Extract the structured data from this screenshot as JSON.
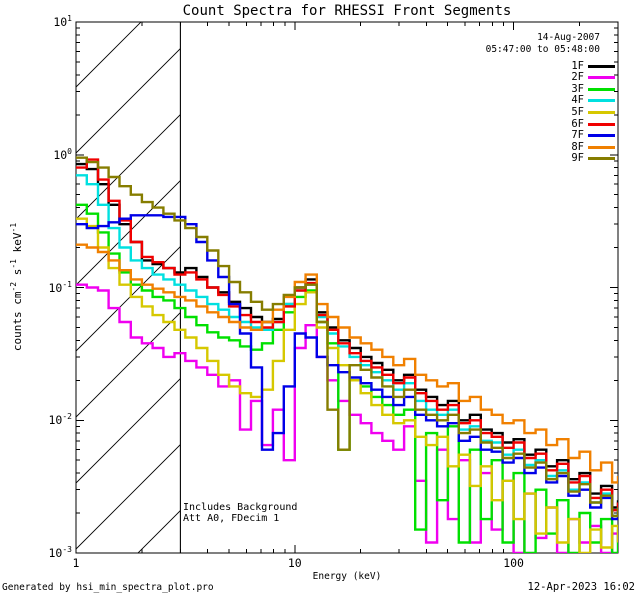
{
  "title": "Count Spectra for RHESSI Front Segments",
  "header": {
    "date": "14-Aug-2007",
    "time_range": "05:47:00 to 05:48:00"
  },
  "legend": {
    "entries": [
      {
        "label": "1F",
        "color": "#000000"
      },
      {
        "label": "2F",
        "color": "#f000f0"
      },
      {
        "label": "3F",
        "color": "#00e000"
      },
      {
        "label": "4F",
        "color": "#00e0e0"
      },
      {
        "label": "5F",
        "color": "#d6c800"
      },
      {
        "label": "6F",
        "color": "#f00000"
      },
      {
        "label": "7F",
        "color": "#0000e8"
      },
      {
        "label": "8F",
        "color": "#f08000"
      },
      {
        "label": "9F",
        "color": "#867d00"
      }
    ]
  },
  "axes": {
    "xlabel": "Energy (keV)",
    "ylabel_parts": [
      {
        "t": "counts cm"
      },
      {
        "sup": "-2"
      },
      {
        "t": " s"
      },
      {
        "sup": "-1"
      },
      {
        "t": " keV"
      },
      {
        "sup": "-1"
      }
    ],
    "x_ticks": [
      {
        "label": "1",
        "value": 1
      },
      {
        "label": "10",
        "value": 10
      },
      {
        "label": "100",
        "value": 100
      }
    ],
    "y_ticks": [
      {
        "base": "10",
        "exp": "1",
        "value": 10
      },
      {
        "base": "10",
        "exp": "0",
        "value": 1
      },
      {
        "base": "10",
        "exp": "-1",
        "value": 0.1
      },
      {
        "base": "10",
        "exp": "-2",
        "value": 0.01
      },
      {
        "base": "10",
        "exp": "-3",
        "value": 0.001
      }
    ]
  },
  "annotations": {
    "line1": "Includes Background",
    "line2": "Att A0, FDecim 1"
  },
  "footer": {
    "left": "Generated by hsi_min_spectra_plot.pro",
    "right": "12-Apr-2023 16:02"
  },
  "hatch_region": {
    "x_min": 1,
    "x_max": 3
  },
  "chart_data": {
    "type": "line",
    "step": true,
    "x_scale": "log",
    "y_scale": "log",
    "xlim": [
      1,
      300
    ],
    "ylim": [
      0.001,
      10
    ],
    "title": "Count Spectra for RHESSI Front Segments",
    "xlabel": "Energy (keV)",
    "ylabel": "counts cm^-2 s^-1 keV^-1",
    "legend_position": "top-right",
    "grid": false,
    "x": [
      1.0,
      1.12,
      1.26,
      1.41,
      1.58,
      1.78,
      2.0,
      2.24,
      2.51,
      2.82,
      3.16,
      3.55,
      3.98,
      4.47,
      5.01,
      5.62,
      6.31,
      7.08,
      7.94,
      8.91,
      10.0,
      11.2,
      12.6,
      14.1,
      15.8,
      17.8,
      20.0,
      22.4,
      25.1,
      28.2,
      31.6,
      35.5,
      39.8,
      44.7,
      50.1,
      56.2,
      63.1,
      70.8,
      79.4,
      89.1,
      100,
      112,
      126,
      141,
      158,
      178,
      200,
      224,
      251,
      282,
      300
    ],
    "series": [
      {
        "name": "1F",
        "color": "#000000",
        "values": [
          0.85,
          0.78,
          0.6,
          0.42,
          0.3,
          0.22,
          0.16,
          0.15,
          0.14,
          0.13,
          0.14,
          0.12,
          0.1,
          0.092,
          0.078,
          0.07,
          0.06,
          0.055,
          0.058,
          0.075,
          0.1,
          0.115,
          0.065,
          0.05,
          0.04,
          0.035,
          0.03,
          0.027,
          0.024,
          0.02,
          0.022,
          0.017,
          0.015,
          0.013,
          0.014,
          0.01,
          0.011,
          0.0085,
          0.008,
          0.0068,
          0.0072,
          0.0055,
          0.006,
          0.0045,
          0.005,
          0.0036,
          0.004,
          0.0028,
          0.0032,
          0.0022,
          0.0025
        ]
      },
      {
        "name": "2F",
        "color": "#f000f0",
        "values": [
          0.105,
          0.1,
          0.095,
          0.07,
          0.055,
          0.042,
          0.038,
          0.035,
          0.03,
          0.032,
          0.028,
          0.025,
          0.022,
          0.018,
          0.02,
          0.0085,
          0.014,
          0.0065,
          0.012,
          0.005,
          0.035,
          0.052,
          0.03,
          0.02,
          0.014,
          0.011,
          0.0095,
          0.008,
          0.007,
          0.006,
          0.009,
          0.0035,
          0.0012,
          0.006,
          0.0018,
          0.005,
          0.0012,
          0.004,
          0.0015,
          0.0035,
          0.001,
          0.0028,
          0.0013,
          0.0022,
          0.001,
          0.0018,
          0.0012,
          0.0016,
          0.001,
          0.0014,
          0.0012
        ]
      },
      {
        "name": "3F",
        "color": "#00e000",
        "values": [
          0.42,
          0.36,
          0.26,
          0.18,
          0.13,
          0.105,
          0.095,
          0.085,
          0.08,
          0.07,
          0.06,
          0.052,
          0.046,
          0.042,
          0.04,
          0.036,
          0.034,
          0.038,
          0.048,
          0.065,
          0.085,
          0.095,
          0.055,
          0.038,
          0.006,
          0.02,
          0.018,
          0.015,
          0.013,
          0.011,
          0.012,
          0.0015,
          0.008,
          0.0025,
          0.009,
          0.0012,
          0.006,
          0.0018,
          0.005,
          0.0012,
          0.004,
          0.001,
          0.003,
          0.0014,
          0.0025,
          0.001,
          0.002,
          0.0012,
          0.0018,
          0.001,
          0.0015
        ]
      },
      {
        "name": "4F",
        "color": "#00e0e0",
        "values": [
          0.7,
          0.6,
          0.42,
          0.28,
          0.2,
          0.16,
          0.14,
          0.125,
          0.115,
          0.105,
          0.095,
          0.085,
          0.075,
          0.068,
          0.06,
          0.055,
          0.05,
          0.048,
          0.055,
          0.075,
          0.095,
          0.105,
          0.06,
          0.045,
          0.036,
          0.03,
          0.026,
          0.023,
          0.02,
          0.017,
          0.019,
          0.014,
          0.012,
          0.011,
          0.012,
          0.0085,
          0.009,
          0.007,
          0.0068,
          0.0055,
          0.006,
          0.0046,
          0.005,
          0.0038,
          0.0042,
          0.003,
          0.0034,
          0.0024,
          0.0028,
          0.0019,
          0.0022
        ]
      },
      {
        "name": "5F",
        "color": "#d6c800",
        "values": [
          0.33,
          0.29,
          0.2,
          0.14,
          0.105,
          0.085,
          0.072,
          0.062,
          0.055,
          0.048,
          0.042,
          0.035,
          0.028,
          0.022,
          0.018,
          0.016,
          0.015,
          0.017,
          0.028,
          0.048,
          0.075,
          0.092,
          0.05,
          0.035,
          0.026,
          0.02,
          0.016,
          0.013,
          0.011,
          0.0095,
          0.01,
          0.0075,
          0.0065,
          0.0075,
          0.0045,
          0.0055,
          0.0032,
          0.0045,
          0.0025,
          0.0035,
          0.0018,
          0.0028,
          0.0014,
          0.0022,
          0.0012,
          0.0018,
          0.001,
          0.0015,
          0.0011,
          0.0016,
          0.0012
        ]
      },
      {
        "name": "6F",
        "color": "#f00000",
        "values": [
          0.8,
          0.92,
          0.65,
          0.45,
          0.32,
          0.22,
          0.17,
          0.155,
          0.14,
          0.125,
          0.13,
          0.115,
          0.1,
          0.088,
          0.072,
          0.062,
          0.055,
          0.05,
          0.055,
          0.072,
          0.095,
          0.108,
          0.062,
          0.048,
          0.038,
          0.032,
          0.028,
          0.025,
          0.022,
          0.019,
          0.021,
          0.016,
          0.014,
          0.012,
          0.013,
          0.0095,
          0.01,
          0.008,
          0.0075,
          0.0062,
          0.0068,
          0.0052,
          0.0056,
          0.0042,
          0.0047,
          0.0034,
          0.0038,
          0.0026,
          0.003,
          0.0021,
          0.0024
        ]
      },
      {
        "name": "7F",
        "color": "#0000e8",
        "values": [
          0.3,
          0.28,
          0.29,
          0.31,
          0.33,
          0.35,
          0.35,
          0.35,
          0.34,
          0.34,
          0.3,
          0.22,
          0.16,
          0.12,
          0.075,
          0.045,
          0.025,
          0.006,
          0.008,
          0.018,
          0.045,
          0.042,
          0.03,
          0.026,
          0.023,
          0.021,
          0.019,
          0.017,
          0.015,
          0.013,
          0.015,
          0.011,
          0.01,
          0.009,
          0.0095,
          0.007,
          0.0075,
          0.006,
          0.0058,
          0.0048,
          0.0052,
          0.004,
          0.0044,
          0.0034,
          0.0038,
          0.0027,
          0.003,
          0.0022,
          0.0026,
          0.0018,
          0.0021
        ]
      },
      {
        "name": "8F",
        "color": "#f08000",
        "values": [
          0.21,
          0.2,
          0.185,
          0.16,
          0.135,
          0.115,
          0.105,
          0.098,
          0.092,
          0.085,
          0.08,
          0.072,
          0.065,
          0.06,
          0.055,
          0.05,
          0.048,
          0.055,
          0.068,
          0.085,
          0.11,
          0.125,
          0.075,
          0.06,
          0.05,
          0.042,
          0.038,
          0.034,
          0.03,
          0.026,
          0.029,
          0.022,
          0.02,
          0.018,
          0.019,
          0.014,
          0.015,
          0.012,
          0.011,
          0.0095,
          0.01,
          0.008,
          0.0085,
          0.0065,
          0.0072,
          0.0052,
          0.0058,
          0.0042,
          0.0048,
          0.0034,
          0.0038
        ]
      },
      {
        "name": "9F",
        "color": "#867d00",
        "values": [
          0.95,
          0.88,
          0.8,
          0.68,
          0.58,
          0.5,
          0.44,
          0.4,
          0.36,
          0.32,
          0.28,
          0.24,
          0.19,
          0.145,
          0.11,
          0.092,
          0.078,
          0.068,
          0.075,
          0.088,
          0.1,
          0.105,
          0.055,
          0.012,
          0.006,
          0.026,
          0.024,
          0.021,
          0.018,
          0.015,
          0.017,
          0.012,
          0.011,
          0.01,
          0.011,
          0.008,
          0.0085,
          0.0068,
          0.0062,
          0.0052,
          0.0056,
          0.0044,
          0.0048,
          0.0036,
          0.004,
          0.0029,
          0.0033,
          0.0024,
          0.0027,
          0.0019,
          0.0022
        ]
      }
    ]
  }
}
